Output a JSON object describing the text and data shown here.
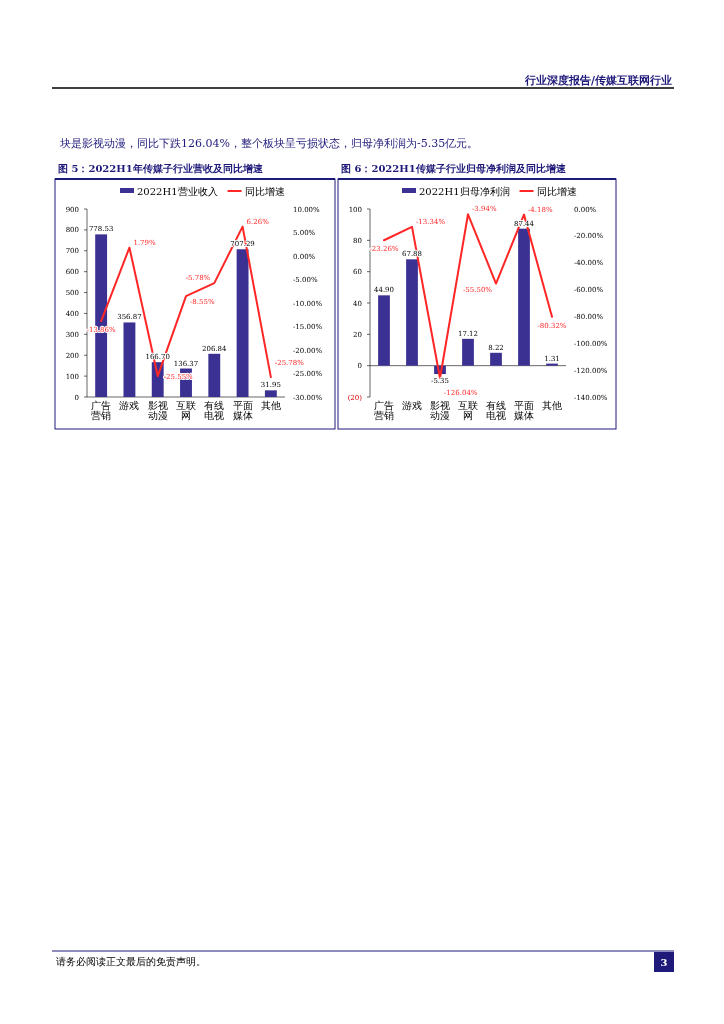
{
  "chart_data": [
    {
      "type": "other",
      "annotations": [
        "行业深度报告/传媒互联网行业",
        "块是影视动漫，同比下跌126.04%，整个板块呈亏损状态，归母净利润为-5.35亿元。",
        "请务必阅读正文最后的免责声明。",
        "3"
      ]
    },
    {
      "type": "bar",
      "title": "图 5：2022H1年传媒子行业营收及同比增速",
      "legend": "top",
      "categories": [
        "广告营销",
        "游戏",
        "影视动漫",
        "互联网",
        "有线电视",
        "平面媒体",
        "其他"
      ],
      "series": [
        {
          "name": "2022H1营业收入",
          "type": "bar",
          "color": "#3b3192",
          "values": [
            778.53,
            356.87,
            166.7,
            136.37,
            206.84,
            707.29,
            31.95
          ],
          "value_labels": [
            "778.53",
            "356.87",
            "166.70",
            "136.37",
            "206.84",
            "707.29",
            "31.95"
          ]
        },
        {
          "name": "同比增速",
          "type": "line",
          "axis": "y2",
          "color": "#ff2626",
          "values": [
            -13.86,
            1.79,
            -25.55,
            -8.55,
            -5.78,
            6.26,
            -25.78
          ],
          "value_labels": [
            "-13.86%",
            "1.79%",
            "-25.55%",
            "-8.55%",
            "-5.78%",
            "6.26%",
            "-25.78%"
          ]
        }
      ],
      "ylim": [
        0,
        900
      ],
      "yticks": [
        0,
        100,
        200,
        300,
        400,
        500,
        600,
        700,
        800,
        900
      ],
      "y2lim": [
        -30,
        10
      ],
      "y2ticks": [
        {
          "value": -30,
          "label": "-30.00%"
        },
        {
          "value": -25,
          "label": "-25.00%"
        },
        {
          "value": -20,
          "label": "-20.00%"
        },
        {
          "value": -15,
          "label": "-15.00%"
        },
        {
          "value": -10,
          "label": "-10.00%"
        },
        {
          "value": -5,
          "label": "-5.00%"
        },
        {
          "value": 0,
          "label": "0.00%"
        },
        {
          "value": 5,
          "label": "5.00%"
        },
        {
          "value": 10,
          "label": "10.00%"
        }
      ]
    },
    {
      "type": "bar",
      "title": "图 6：2022H1传媒子行业归母净利润及同比增速",
      "legend": "top",
      "categories": [
        "广告营销",
        "游戏",
        "影视动漫",
        "互联网",
        "有线电视",
        "平面媒体",
        "其他"
      ],
      "series": [
        {
          "name": "2022H1归母净利润",
          "type": "bar",
          "color": "#3b3192",
          "values": [
            44.9,
            67.88,
            -5.35,
            17.12,
            8.22,
            87.44,
            1.31
          ],
          "value_labels": [
            "44.90",
            "67.88",
            "-5.35",
            "17.12",
            "8.22",
            "87.44",
            "1.31"
          ]
        },
        {
          "name": "同比增速",
          "type": "line",
          "axis": "y2",
          "color": "#ff2626",
          "values": [
            -23.26,
            -13.34,
            -126.04,
            -3.94,
            -55.5,
            -4.18,
            -80.32
          ],
          "value_labels": [
            "-23.26%",
            "-13.34%",
            "-126.04%",
            "-3.94%",
            "-55.50%",
            "-4.18%",
            "-80.32%"
          ]
        }
      ],
      "ylim": [
        -20,
        100
      ],
      "yticks": [
        {
          "value": -20,
          "label": "(20)"
        },
        0,
        20,
        40,
        60,
        80,
        100
      ],
      "y2lim": [
        -140,
        0
      ],
      "y2ticks": [
        {
          "value": -140,
          "label": "-140.00%"
        },
        {
          "value": -120,
          "label": "-120.00%"
        },
        {
          "value": -100,
          "label": "-100.00%"
        },
        {
          "value": -80,
          "label": "-80.00%"
        },
        {
          "value": -60,
          "label": "-60.00%"
        },
        {
          "value": -40,
          "label": "-40.00%"
        },
        {
          "value": -20,
          "label": "-20.00%"
        },
        {
          "value": 0,
          "label": "0.00%"
        }
      ]
    }
  ]
}
